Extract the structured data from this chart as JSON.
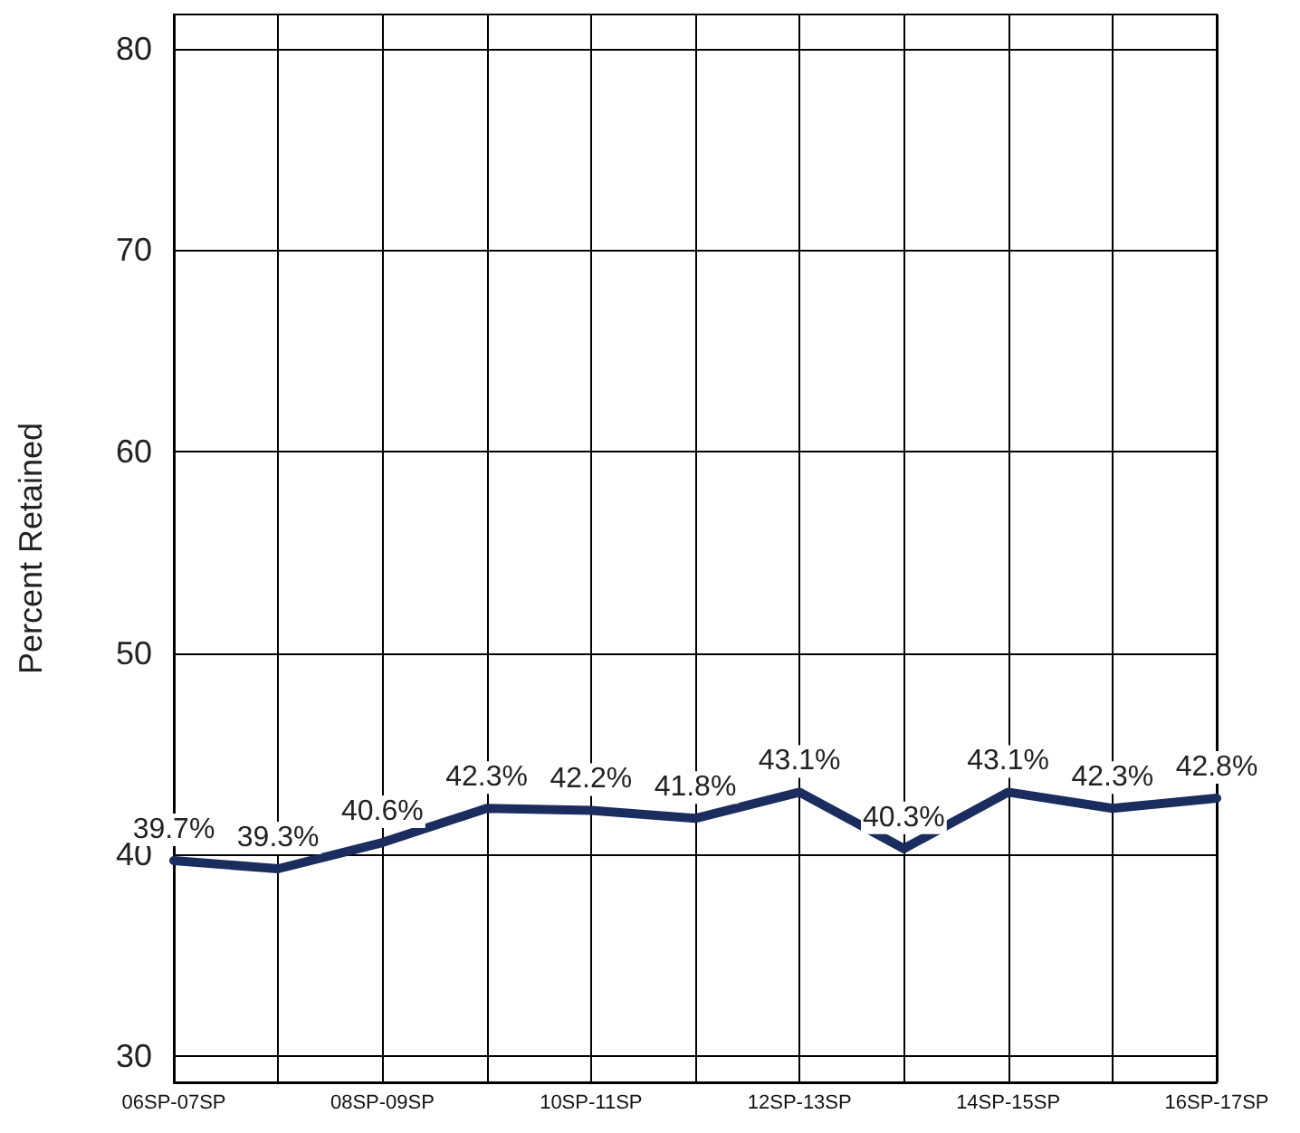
{
  "chart_data": {
    "type": "line",
    "ylabel": "Percent Retained",
    "categories": [
      "06SP-07SP",
      null,
      "08SP-09SP",
      null,
      "10SP-11SP",
      null,
      "12SP-13SP",
      null,
      "14SP-15SP",
      null,
      "16SP-17SP"
    ],
    "series": [
      {
        "color": "#1b2d5e",
        "values": [
          39.7,
          39.3,
          40.6,
          42.3,
          42.2,
          41.8,
          43.1,
          40.3,
          43.1,
          42.3,
          42.8
        ],
        "value_labels": [
          "39.7%",
          "39.3%",
          "40.6%",
          "42.3%",
          "42.2%",
          "41.8%",
          "43.1%",
          "40.3%",
          "43.1%",
          "42.3%",
          "42.8%"
        ]
      }
    ],
    "ylim": [
      28.7,
      81.7
    ],
    "yticks": [
      30,
      40,
      50,
      60,
      70,
      80
    ],
    "grid": true,
    "marker": "none",
    "line_style": "solid"
  }
}
